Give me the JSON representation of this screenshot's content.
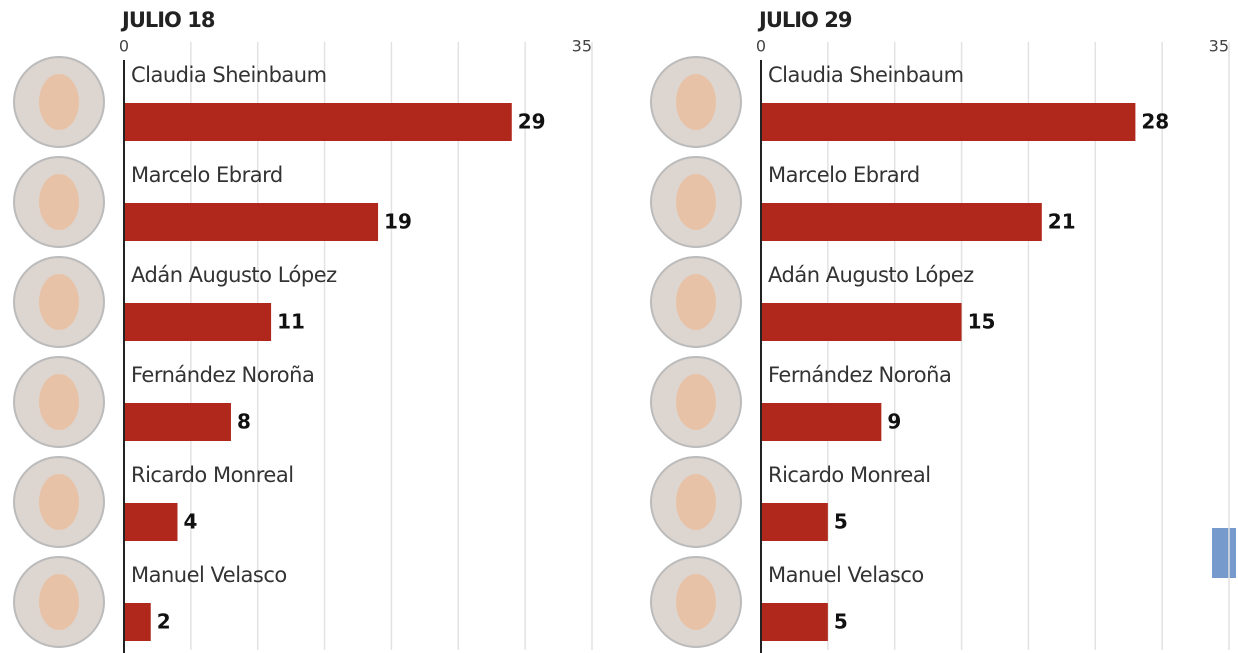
{
  "chart_data": [
    {
      "type": "bar",
      "orientation": "horizontal",
      "title": "JULIO 18",
      "categories": [
        "Claudia Sheinbaum",
        "Marcelo Ebrard",
        "Adán Augusto López",
        "Fernández Noroña",
        "Ricardo Monreal",
        "Manuel Velasco"
      ],
      "values": [
        29,
        19,
        11,
        8,
        4,
        2
      ],
      "color": "#b0281c",
      "xlim": [
        0,
        35
      ],
      "xticks": [
        0,
        {
          "value": 5,
          "label": null
        },
        {
          "value": 10,
          "label": null
        },
        {
          "value": 15,
          "label": null
        },
        {
          "value": 20,
          "label": null
        },
        {
          "value": 25,
          "label": null
        },
        {
          "value": 30,
          "label": null
        },
        35
      ],
      "grid": true
    },
    {
      "type": "bar",
      "orientation": "horizontal",
      "title": "JULIO 29",
      "categories": [
        "Claudia Sheinbaum",
        "Marcelo Ebrard",
        "Adán Augusto López",
        "Fernández Noroña",
        "Ricardo Monreal",
        "Manuel Velasco"
      ],
      "values": [
        28,
        21,
        15,
        9,
        5,
        5
      ],
      "color": "#b0281c",
      "xlim": [
        0,
        35
      ],
      "xticks": [
        0,
        {
          "value": 5,
          "label": null
        },
        {
          "value": 10,
          "label": null
        },
        {
          "value": 15,
          "label": null
        },
        {
          "value": 20,
          "label": null
        },
        {
          "value": 25,
          "label": null
        },
        {
          "value": 30,
          "label": null
        },
        35
      ],
      "grid": true
    }
  ]
}
